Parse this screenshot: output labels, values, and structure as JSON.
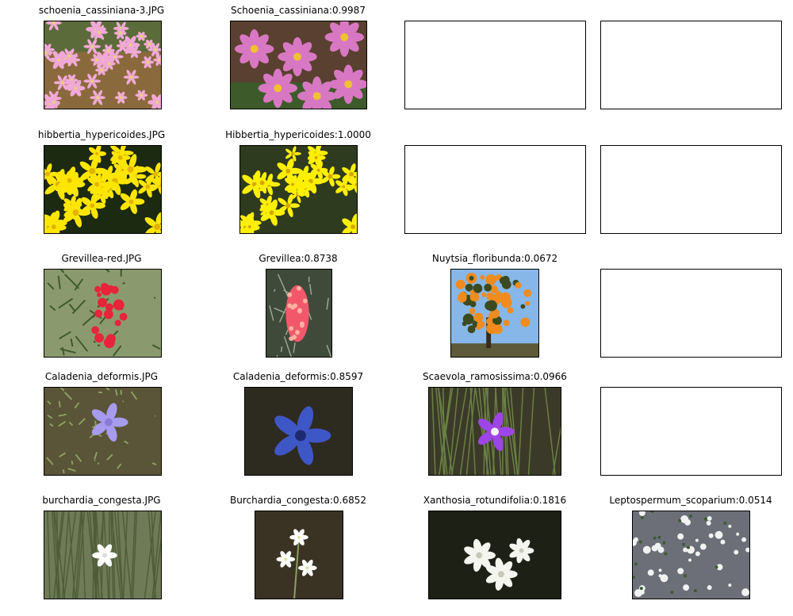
{
  "rows": [
    {
      "query": {
        "caption": "schoenia_cassiniana-3.JPG",
        "scene": "pink-meadow"
      },
      "results": [
        {
          "caption": "Schoenia_cassiniana:0.9987",
          "scene": "pink-closeup"
        },
        {
          "caption": "",
          "scene": "empty"
        },
        {
          "caption": "",
          "scene": "empty"
        }
      ]
    },
    {
      "query": {
        "caption": "hibbertia_hypericoides.JPG",
        "scene": "yellow-dense"
      },
      "results": [
        {
          "caption": "Hibbertia_hypericoides:1.0000",
          "scene": "yellow-cluster"
        },
        {
          "caption": "",
          "scene": "empty"
        },
        {
          "caption": "",
          "scene": "empty"
        }
      ]
    },
    {
      "query": {
        "caption": "Grevillea-red.JPG",
        "scene": "red-spider"
      },
      "results": [
        {
          "caption": "Grevillea:0.8738",
          "scene": "red-spike"
        },
        {
          "caption": "Nuytsia_floribunda:0.0672",
          "scene": "orange-tree"
        },
        {
          "caption": "",
          "scene": "empty"
        }
      ]
    },
    {
      "query": {
        "caption": "Caladenia_deformis.JPG",
        "scene": "blue-orchid-ground"
      },
      "results": [
        {
          "caption": "Caladenia_deformis:0.8597",
          "scene": "blue-orchid-dark"
        },
        {
          "caption": "Scaevola_ramosissima:0.0966",
          "scene": "purple-fan"
        },
        {
          "caption": "",
          "scene": "empty"
        }
      ]
    },
    {
      "query": {
        "caption": "burchardia_congesta.JPG",
        "scene": "white-grass"
      },
      "results": [
        {
          "caption": "Burchardia_congesta:0.6852",
          "scene": "white-stem"
        },
        {
          "caption": "Xanthosia_rotundifolia:0.1816",
          "scene": "white-star"
        },
        {
          "caption": "Leptospermum_scoparium:0.0514",
          "scene": "white-shrub"
        }
      ]
    }
  ]
}
